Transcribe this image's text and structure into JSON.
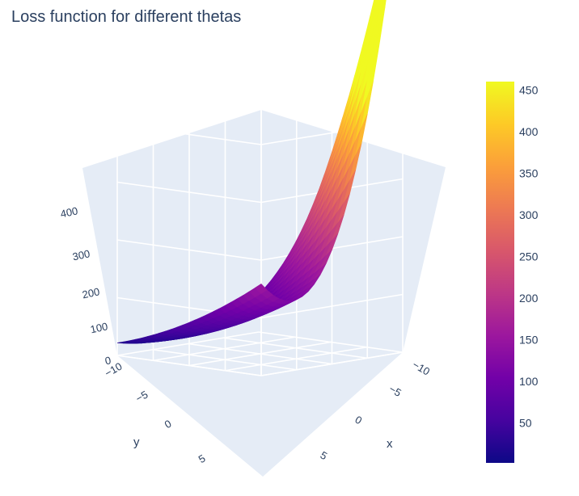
{
  "chart_data": {
    "type": "surface",
    "title": "Loss function for different thetas",
    "xlabel": "x",
    "ylabel": "y",
    "zlabel": "",
    "x_range": [
      -10,
      10
    ],
    "y_range": [
      -10,
      10
    ],
    "z_range": [
      0,
      460
    ],
    "x_ticks": [
      "−10",
      "−5",
      "0",
      "5"
    ],
    "y_ticks": [
      "−10",
      "−5",
      "0",
      "5"
    ],
    "z_ticks": [
      "0",
      "100",
      "200",
      "300",
      "400"
    ],
    "corner_values": [
      {
        "x": -10,
        "y": -10,
        "z": 60
      },
      {
        "x": 10,
        "y": -10,
        "z": 115
      },
      {
        "x": -10,
        "y": 10,
        "z": 460
      },
      {
        "x": 10,
        "y": 10,
        "z": 310
      }
    ],
    "minimum": {
      "x": 5,
      "y": -10,
      "z": 0
    },
    "colorscale": "plasma",
    "colorbar": {
      "ticks": [
        "50",
        "100",
        "150",
        "200",
        "250",
        "300",
        "350",
        "400",
        "450"
      ],
      "min": 2,
      "max": 460,
      "colors": [
        "#0d0887",
        "#46039f",
        "#7201a8",
        "#9c179e",
        "#bd3786",
        "#d8576b",
        "#ed7953",
        "#fb9f3a",
        "#fdca26",
        "#f0f921"
      ]
    },
    "scene": {
      "background": "#e5ecf6",
      "grid_color": "#ffffff",
      "showgrid": true
    }
  }
}
